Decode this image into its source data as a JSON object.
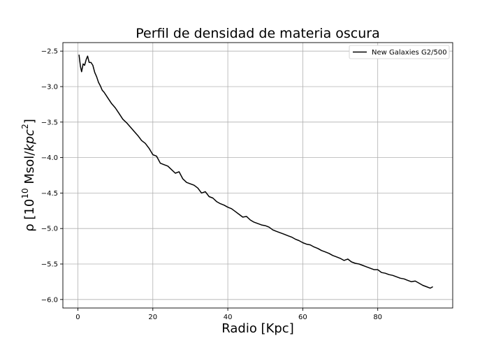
{
  "chart_data": {
    "type": "line",
    "title": "Perfil de densidad de materia oscura",
    "xlabel": "Radio [Kpc]",
    "ylabel_parts": {
      "rho": "ρ [10",
      "exp10": "10",
      "mid": " Msol/",
      "kpc": "kpc",
      "exp2": "2",
      "close": "]"
    },
    "xlim": [
      -4,
      100
    ],
    "ylim": [
      -6.12,
      -2.38
    ],
    "x_ticks": [
      0,
      20,
      40,
      60,
      80
    ],
    "y_ticks": [
      -2.5,
      -3.0,
      -3.5,
      -4.0,
      -4.5,
      -5.0,
      -5.5,
      -6.0
    ],
    "grid": true,
    "legend_position": "top-right",
    "series": [
      {
        "name": "New Galaxies G2/500",
        "color": "#000000",
        "x": [
          0.3,
          0.7,
          1.0,
          1.4,
          1.8,
          2.2,
          2.6,
          3.0,
          3.5,
          4.0,
          4.5,
          5.0,
          5.5,
          6.0,
          6.5,
          7.0,
          7.5,
          8.0,
          9.0,
          10.0,
          11.0,
          12.0,
          13.0,
          14.0,
          15.0,
          16.0,
          17.0,
          18.0,
          19.0,
          20.0,
          21.0,
          22.0,
          23.0,
          24.0,
          25.0,
          26.0,
          27.0,
          28.0,
          29.0,
          30.0,
          31.0,
          32.0,
          33.0,
          34.0,
          35.0,
          36.0,
          37.0,
          38.0,
          39.0,
          40.0,
          41.0,
          42.0,
          43.0,
          44.0,
          45.0,
          46.0,
          47.0,
          48.0,
          49.0,
          50.0,
          51.0,
          52.0,
          53.0,
          54.0,
          55.0,
          56.0,
          57.0,
          58.0,
          59.0,
          60.0,
          61.0,
          62.0,
          63.0,
          64.0,
          65.0,
          66.0,
          67.0,
          68.0,
          69.0,
          70.0,
          71.0,
          72.0,
          73.0,
          74.0,
          75.0,
          76.0,
          77.0,
          78.0,
          79.0,
          80.0,
          81.0,
          82.0,
          83.0,
          84.0,
          85.0,
          86.0,
          87.0,
          88.0,
          89.0,
          90.0,
          91.0,
          92.0,
          93.0,
          94.0,
          94.7
        ],
        "y": [
          -2.55,
          -2.72,
          -2.79,
          -2.68,
          -2.7,
          -2.62,
          -2.57,
          -2.66,
          -2.66,
          -2.7,
          -2.8,
          -2.86,
          -2.94,
          -2.99,
          -3.05,
          -3.08,
          -3.12,
          -3.16,
          -3.24,
          -3.3,
          -3.38,
          -3.46,
          -3.51,
          -3.57,
          -3.63,
          -3.69,
          -3.76,
          -3.8,
          -3.87,
          -3.96,
          -3.98,
          -4.08,
          -4.1,
          -4.12,
          -4.17,
          -4.22,
          -4.2,
          -4.3,
          -4.35,
          -4.37,
          -4.39,
          -4.43,
          -4.5,
          -4.48,
          -4.55,
          -4.57,
          -4.62,
          -4.65,
          -4.67,
          -4.7,
          -4.72,
          -4.76,
          -4.8,
          -4.84,
          -4.83,
          -4.88,
          -4.91,
          -4.93,
          -4.95,
          -4.96,
          -4.98,
          -5.02,
          -5.04,
          -5.06,
          -5.08,
          -5.1,
          -5.12,
          -5.15,
          -5.17,
          -5.2,
          -5.22,
          -5.23,
          -5.26,
          -5.28,
          -5.31,
          -5.33,
          -5.35,
          -5.38,
          -5.4,
          -5.42,
          -5.45,
          -5.43,
          -5.47,
          -5.49,
          -5.5,
          -5.52,
          -5.54,
          -5.56,
          -5.58,
          -5.58,
          -5.62,
          -5.63,
          -5.65,
          -5.66,
          -5.68,
          -5.7,
          -5.71,
          -5.73,
          -5.75,
          -5.74,
          -5.77,
          -5.8,
          -5.82,
          -5.84,
          -5.82
        ]
      }
    ]
  }
}
